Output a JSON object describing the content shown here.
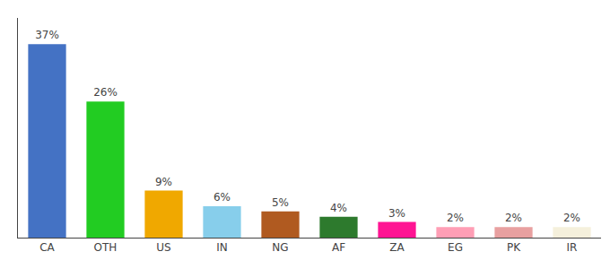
{
  "chart_data": {
    "type": "bar",
    "categories": [
      "CA",
      "OTH",
      "US",
      "IN",
      "NG",
      "AF",
      "ZA",
      "EG",
      "PK",
      "IR"
    ],
    "values": [
      37,
      26,
      9,
      6,
      5,
      4,
      3,
      2,
      2,
      2
    ],
    "value_labels": [
      "37%",
      "26%",
      "9%",
      "6%",
      "5%",
      "4%",
      "3%",
      "2%",
      "2%",
      "2%"
    ],
    "colors": [
      "#4472c4",
      "#22cc22",
      "#f0a800",
      "#87ceeb",
      "#b05a20",
      "#2d7a2d",
      "#ff1493",
      "#ff9eb5",
      "#e8a0a0",
      "#f5f0dc"
    ],
    "ylim": [
      0,
      42
    ],
    "grid": false,
    "data_labels": true,
    "tick_labels": "x"
  }
}
